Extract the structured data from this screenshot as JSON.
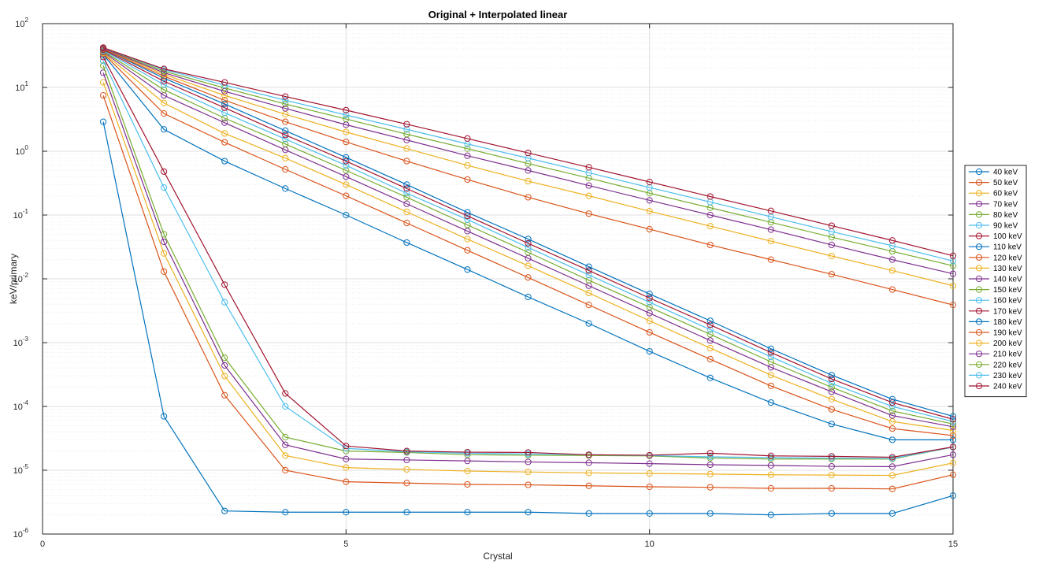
{
  "chart_data": {
    "type": "line",
    "title": "Original + Interpolated linear",
    "xlabel": "Crystal",
    "ylabel": "keV/primary",
    "xlim": [
      0,
      15
    ],
    "ylim": [
      1e-06,
      100
    ],
    "yscale": "log",
    "grid": true,
    "minor_grid": true,
    "legend_position": "right",
    "x_ticks": [
      "0",
      "5",
      "10",
      "15"
    ],
    "y_ticks": [
      {
        "base": "10",
        "exp": "-6"
      },
      {
        "base": "10",
        "exp": "-5"
      },
      {
        "base": "10",
        "exp": "-4"
      },
      {
        "base": "10",
        "exp": "-3"
      },
      {
        "base": "10",
        "exp": "-2"
      },
      {
        "base": "10",
        "exp": "-1"
      },
      {
        "base": "10",
        "exp": "0"
      },
      {
        "base": "10",
        "exp": "1"
      },
      {
        "base": "10",
        "exp": "2"
      }
    ],
    "x": [
      1,
      2,
      3,
      4,
      5,
      6,
      7,
      8,
      9,
      10,
      11,
      12,
      13,
      14,
      15
    ],
    "series": [
      {
        "name": "40 keV",
        "color": "#0072BD",
        "values": [
          2.9,
          7e-05,
          2.3e-06,
          2.2e-06,
          2.2e-06,
          2.2e-06,
          2.2e-06,
          2.2e-06,
          2.1e-06,
          2.1e-06,
          2.1e-06,
          2e-06,
          2.1e-06,
          2.1e-06,
          4e-06
        ]
      },
      {
        "name": "50 keV",
        "color": "#D95319",
        "values": [
          7.5,
          0.013,
          0.00015,
          1e-05,
          6.6e-06,
          6.3e-06,
          6e-06,
          5.9e-06,
          5.7e-06,
          5.5e-06,
          5.4e-06,
          5.2e-06,
          5.2e-06,
          5.1e-06,
          8.5e-06
        ]
      },
      {
        "name": "60 keV",
        "color": "#EDB120",
        "values": [
          12,
          0.025,
          0.0003,
          1.7e-05,
          1.1e-05,
          1.03e-05,
          9.7e-06,
          9.4e-06,
          9.1e-06,
          8.9e-06,
          8.7e-06,
          8.5e-06,
          8.4e-06,
          8.3e-06,
          1.3e-05
        ]
      },
      {
        "name": "70 keV",
        "color": "#7E2F8E",
        "values": [
          17,
          0.038,
          0.00044,
          2.5e-05,
          1.5e-05,
          1.45e-05,
          1.4e-05,
          1.35e-05,
          1.31e-05,
          1.27e-05,
          1.22e-05,
          1.19e-05,
          1.15e-05,
          1.14e-05,
          1.75e-05
        ]
      },
      {
        "name": "80 keV",
        "color": "#77AC30",
        "values": [
          22,
          0.05,
          0.00058,
          3.3e-05,
          2e-05,
          1.9e-05,
          1.75e-05,
          1.72e-05,
          1.7e-05,
          1.68e-05,
          1.55e-05,
          1.5e-05,
          1.5e-05,
          1.5e-05,
          2.3e-05
        ]
      },
      {
        "name": "90 keV",
        "color": "#4DBEEE",
        "values": [
          26,
          0.27,
          0.0043,
          0.0001,
          2.2e-05,
          1.95e-05,
          1.85e-05,
          1.8e-05,
          1.75e-05,
          1.7e-05,
          1.62e-05,
          1.58e-05,
          1.55e-05,
          1.53e-05,
          2.3e-05
        ]
      },
      {
        "name": "100 keV",
        "color": "#A2142F",
        "values": [
          30,
          0.48,
          0.0081,
          0.00016,
          2.4e-05,
          2e-05,
          1.92e-05,
          1.9e-05,
          1.75e-05,
          1.72e-05,
          1.85e-05,
          1.68e-05,
          1.65e-05,
          1.6e-05,
          2.32e-05
        ]
      },
      {
        "name": "110 keV",
        "color": "#0072BD",
        "values": [
          33,
          2.2,
          0.7,
          0.26,
          0.1,
          0.037,
          0.014,
          0.0052,
          0.002,
          0.00073,
          0.00028,
          0.000115,
          5.3e-05,
          3e-05,
          3e-05
        ]
      },
      {
        "name": "120 keV",
        "color": "#D95319",
        "values": [
          34,
          3.9,
          1.38,
          0.52,
          0.2,
          0.075,
          0.028,
          0.0105,
          0.0039,
          0.00145,
          0.00055,
          0.00021,
          9e-05,
          4.5e-05,
          3.5e-05
        ]
      },
      {
        "name": "130 keV",
        "color": "#EDB120",
        "values": [
          35,
          5.7,
          1.9,
          0.78,
          0.3,
          0.112,
          0.042,
          0.016,
          0.006,
          0.0022,
          0.00082,
          0.00031,
          0.00013,
          5.8e-05,
          4.2e-05
        ]
      },
      {
        "name": "140 keV",
        "color": "#7E2F8E",
        "values": [
          36,
          7.5,
          2.8,
          1.05,
          0.4,
          0.15,
          0.056,
          0.021,
          0.0078,
          0.0029,
          0.00108,
          0.00041,
          0.00017,
          7.2e-05,
          4.8e-05
        ]
      },
      {
        "name": "150 keV",
        "color": "#77AC30",
        "values": [
          37,
          9.2,
          3.3,
          1.3,
          0.5,
          0.19,
          0.07,
          0.026,
          0.0095,
          0.0036,
          0.00135,
          0.0005,
          0.0002,
          8.5e-05,
          5.3e-05
        ]
      },
      {
        "name": "160 keV",
        "color": "#4DBEEE",
        "values": [
          38,
          11,
          4.0,
          1.55,
          0.6,
          0.22,
          0.085,
          0.031,
          0.0115,
          0.0043,
          0.0016,
          0.0006,
          0.00023,
          0.0001,
          5.8e-05
        ]
      },
      {
        "name": "170 keV",
        "color": "#A2142F",
        "values": [
          39,
          12.5,
          4.8,
          1.8,
          0.7,
          0.26,
          0.097,
          0.036,
          0.0135,
          0.005,
          0.0019,
          0.0007,
          0.00027,
          0.000115,
          6.3e-05
        ]
      },
      {
        "name": "180 keV",
        "color": "#0072BD",
        "values": [
          40,
          14,
          5.5,
          2.1,
          0.8,
          0.3,
          0.11,
          0.042,
          0.0155,
          0.0058,
          0.0022,
          0.0008,
          0.00031,
          0.00013,
          7e-05
        ]
      },
      {
        "name": "190 keV",
        "color": "#D95319",
        "values": [
          40,
          15,
          6.3,
          2.9,
          1.4,
          0.7,
          0.36,
          0.19,
          0.105,
          0.06,
          0.034,
          0.02,
          0.0118,
          0.0068,
          0.0039
        ]
      },
      {
        "name": "200 keV",
        "color": "#EDB120",
        "values": [
          41,
          16,
          7.5,
          3.8,
          2.0,
          1.1,
          0.6,
          0.34,
          0.2,
          0.115,
          0.067,
          0.039,
          0.0228,
          0.0135,
          0.0078
        ]
      },
      {
        "name": "210 keV",
        "color": "#7E2F8E",
        "values": [
          41,
          17,
          8.7,
          4.7,
          2.6,
          1.5,
          0.85,
          0.5,
          0.29,
          0.17,
          0.1,
          0.059,
          0.034,
          0.02,
          0.012
        ]
      },
      {
        "name": "220 keV",
        "color": "#77AC30",
        "values": [
          42,
          18,
          9.8,
          5.5,
          3.2,
          1.85,
          1.1,
          0.64,
          0.38,
          0.22,
          0.13,
          0.077,
          0.045,
          0.027,
          0.016
        ]
      },
      {
        "name": "230 keV",
        "color": "#4DBEEE",
        "values": [
          42,
          19,
          10.9,
          6.3,
          3.7,
          2.2,
          1.3,
          0.78,
          0.46,
          0.27,
          0.16,
          0.094,
          0.055,
          0.033,
          0.019
        ]
      },
      {
        "name": "240 keV",
        "color": "#A2142F",
        "values": [
          42,
          19.5,
          12,
          7.2,
          4.4,
          2.65,
          1.58,
          0.94,
          0.56,
          0.33,
          0.195,
          0.116,
          0.068,
          0.04,
          0.023
        ]
      }
    ]
  }
}
